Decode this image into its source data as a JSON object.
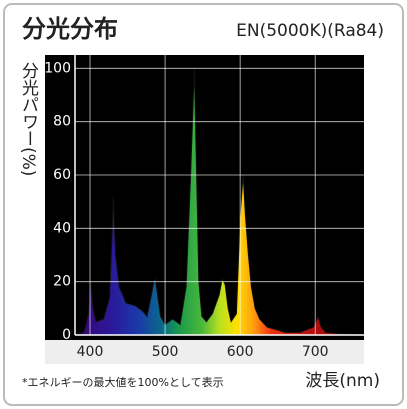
{
  "chart_data": {
    "type": "area",
    "title": "分光分布",
    "subtitle": "EN(5000K)(Ra84)",
    "y_label": "分光パワー(%)",
    "x_label": "波長(nm)",
    "note": "*エネルギーの最大値を100%として表示",
    "x": [
      380,
      392,
      398,
      401,
      404,
      408,
      418,
      426,
      429,
      431,
      434,
      439,
      448,
      460,
      470,
      476,
      481,
      485,
      487,
      490,
      494,
      500,
      510,
      520,
      528,
      534,
      539,
      542,
      545,
      549,
      555,
      563,
      572,
      576,
      580,
      584,
      588,
      595,
      600,
      604,
      607,
      611,
      615,
      620,
      626,
      636,
      648,
      660,
      680,
      698,
      704,
      708,
      714,
      730,
      765
    ],
    "values": [
      0,
      1,
      8,
      20,
      10,
      5,
      6,
      14,
      35,
      52,
      30,
      18,
      12,
      11,
      9,
      7,
      14,
      20,
      21,
      15,
      7,
      4,
      6,
      4,
      18,
      60,
      100,
      60,
      20,
      7,
      5,
      8,
      15,
      21,
      19,
      10,
      5,
      8,
      45,
      60,
      45,
      30,
      18,
      10,
      6,
      3,
      2,
      1,
      1,
      3,
      7,
      3,
      1,
      0.5,
      0
    ],
    "xlim": [
      380,
      765
    ],
    "ylim": [
      0,
      105
    ],
    "xticks": [
      400,
      500,
      600,
      700
    ],
    "yticks": [
      0,
      20,
      40,
      60,
      80,
      100
    ],
    "grid": true
  }
}
